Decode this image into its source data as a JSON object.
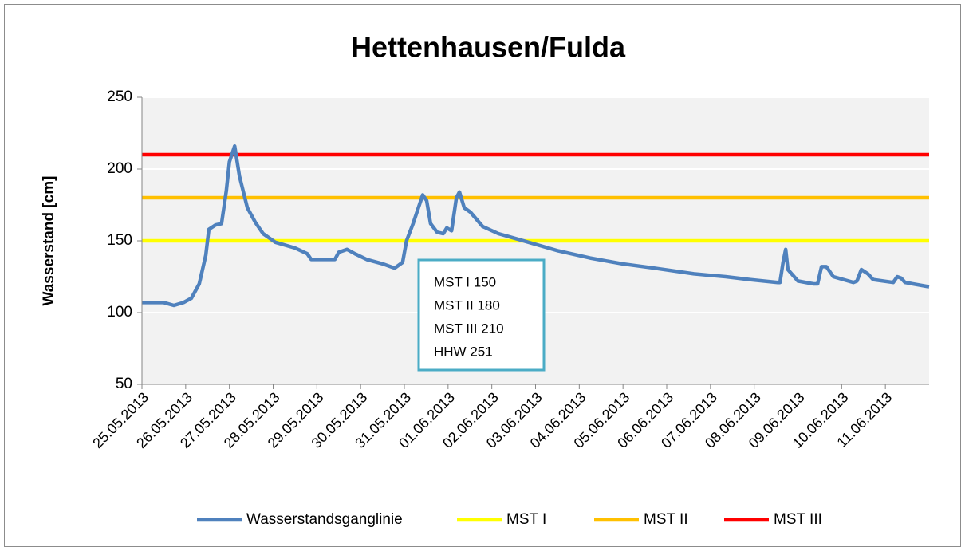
{
  "chart_data": {
    "type": "line",
    "title": "Hettenhausen/Fulda",
    "y_label": "Wasserstand [cm]",
    "annotation": [
      "MST I 150",
      "MST II 180",
      "MST III 210",
      "HHW 251"
    ],
    "xlim": [
      0,
      18
    ],
    "xticks": [
      {
        "value": 0,
        "label": "25.05.2013"
      },
      {
        "value": 1,
        "label": "26.05.2013"
      },
      {
        "value": 2,
        "label": "27.05.2013"
      },
      {
        "value": 3,
        "label": "28.05.2013"
      },
      {
        "value": 4,
        "label": "29.05.2013"
      },
      {
        "value": 5,
        "label": "30.05.2013"
      },
      {
        "value": 6,
        "label": "31.05.2013"
      },
      {
        "value": 7,
        "label": "01.06.2013"
      },
      {
        "value": 8,
        "label": "02.06.2013"
      },
      {
        "value": 9,
        "label": "03.06.2013"
      },
      {
        "value": 10,
        "label": "04.06.2013"
      },
      {
        "value": 11,
        "label": "05.06.2013"
      },
      {
        "value": 12,
        "label": "06.06.2013"
      },
      {
        "value": 13,
        "label": "07.06.2013"
      },
      {
        "value": 14,
        "label": "08.06.2013"
      },
      {
        "value": 15,
        "label": "09.06.2013"
      },
      {
        "value": 16,
        "label": "10.06.2013"
      },
      {
        "value": 17,
        "label": "11.06.2013"
      }
    ],
    "ylim": [
      50,
      250
    ],
    "yticks": [
      50,
      100,
      150,
      200,
      250
    ],
    "grid": true,
    "legend": "bottom",
    "series": [
      {
        "name": "Wasserstandsganglinie",
        "color": "#4f81bd",
        "x": [
          0,
          0.5,
          0.73,
          0.95,
          1.13,
          1.31,
          1.46,
          1.53,
          1.68,
          1.82,
          1.93,
          2.0,
          2.12,
          2.23,
          2.41,
          2.59,
          2.77,
          3.05,
          3.5,
          3.78,
          3.87,
          4.23,
          4.41,
          4.5,
          4.69,
          4.87,
          5.14,
          5.5,
          5.78,
          5.96,
          6.05,
          6.2,
          6.31,
          6.42,
          6.51,
          6.6,
          6.75,
          6.89,
          6.97,
          7.08,
          7.19,
          7.26,
          7.37,
          7.51,
          7.79,
          8.15,
          8.61,
          9.52,
          10.25,
          10.98,
          11.71,
          12.62,
          13.35,
          13.9,
          14.54,
          14.59,
          14.66,
          14.72,
          14.77,
          15.0,
          15.36,
          15.45,
          15.54,
          15.65,
          15.81,
          16.27,
          16.35,
          16.45,
          16.6,
          16.72,
          17.18,
          17.27,
          17.36,
          17.45,
          18.0
        ],
        "values": [
          107,
          107,
          105,
          107,
          110,
          120,
          140,
          158,
          161,
          162,
          185,
          205,
          216,
          195,
          173,
          163,
          155,
          149,
          145,
          141,
          137,
          137,
          137,
          142,
          144,
          141,
          137,
          134,
          131,
          135,
          150,
          162,
          172,
          182,
          178,
          162,
          156,
          155,
          159,
          157,
          180,
          184,
          173,
          170,
          160,
          155,
          151,
          143,
          138,
          134,
          131,
          127,
          125,
          123,
          121,
          121,
          135,
          144,
          130,
          122,
          120,
          120,
          132,
          132,
          125,
          121,
          122,
          130,
          127,
          123,
          121,
          125,
          124,
          121,
          118
        ]
      },
      {
        "name": "MST I",
        "color": "#ffff00",
        "x": [
          0,
          18
        ],
        "values": [
          150,
          150
        ]
      },
      {
        "name": "MST II",
        "color": "#ffc000",
        "x": [
          0,
          18
        ],
        "values": [
          180,
          180
        ]
      },
      {
        "name": "MST III",
        "color": "#ff0000",
        "x": [
          0,
          18
        ],
        "values": [
          210,
          210
        ]
      }
    ]
  }
}
